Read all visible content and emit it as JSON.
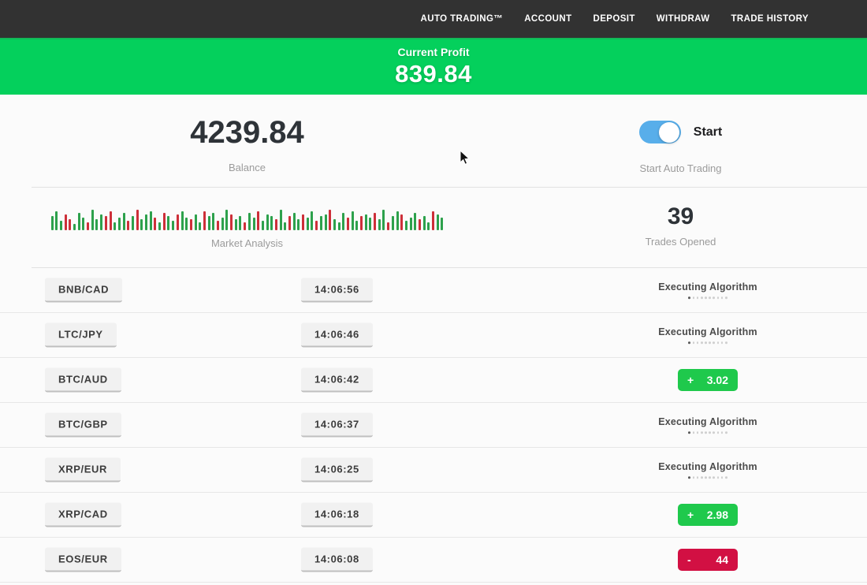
{
  "navbar": {
    "items": [
      {
        "label": "AUTO TRADING™"
      },
      {
        "label": "ACCOUNT"
      },
      {
        "label": "DEPOSIT"
      },
      {
        "label": "WITHDRAW"
      },
      {
        "label": "TRADE HISTORY"
      }
    ]
  },
  "banner": {
    "label": "Current Profit",
    "value": "839.84",
    "bg_color": "#04d05c"
  },
  "stats": {
    "balance": {
      "value": "4239.84",
      "label": "Balance"
    },
    "auto_trading": {
      "toggle_label": "Start",
      "label": "Start Auto Trading",
      "toggle_on": true,
      "toggle_color": "#58aeea"
    },
    "market_analysis": {
      "label": "Market Analysis",
      "bar_colors": {
        "g": "#2da14c",
        "r": "#cd2f39"
      },
      "bars": [
        [
          18,
          "g"
        ],
        [
          24,
          "g"
        ],
        [
          12,
          "g"
        ],
        [
          20,
          "r"
        ],
        [
          14,
          "r"
        ],
        [
          8,
          "g"
        ],
        [
          22,
          "g"
        ],
        [
          16,
          "g"
        ],
        [
          10,
          "r"
        ],
        [
          26,
          "g"
        ],
        [
          14,
          "g"
        ],
        [
          20,
          "g"
        ],
        [
          18,
          "r"
        ],
        [
          24,
          "r"
        ],
        [
          10,
          "g"
        ],
        [
          16,
          "g"
        ],
        [
          22,
          "g"
        ],
        [
          12,
          "r"
        ],
        [
          18,
          "g"
        ],
        [
          26,
          "r"
        ],
        [
          14,
          "g"
        ],
        [
          20,
          "g"
        ],
        [
          24,
          "g"
        ],
        [
          16,
          "r"
        ],
        [
          10,
          "g"
        ],
        [
          22,
          "r"
        ],
        [
          18,
          "g"
        ],
        [
          12,
          "g"
        ],
        [
          20,
          "r"
        ],
        [
          24,
          "g"
        ],
        [
          16,
          "g"
        ],
        [
          14,
          "r"
        ],
        [
          20,
          "g"
        ],
        [
          10,
          "g"
        ],
        [
          24,
          "r"
        ],
        [
          18,
          "g"
        ],
        [
          22,
          "g"
        ],
        [
          12,
          "r"
        ],
        [
          16,
          "g"
        ],
        [
          26,
          "g"
        ],
        [
          20,
          "r"
        ],
        [
          14,
          "g"
        ],
        [
          18,
          "g"
        ],
        [
          10,
          "r"
        ],
        [
          22,
          "g"
        ],
        [
          16,
          "g"
        ],
        [
          24,
          "r"
        ],
        [
          12,
          "g"
        ],
        [
          20,
          "g"
        ],
        [
          18,
          "g"
        ],
        [
          14,
          "r"
        ],
        [
          26,
          "g"
        ],
        [
          10,
          "g"
        ],
        [
          18,
          "r"
        ],
        [
          22,
          "g"
        ],
        [
          14,
          "g"
        ],
        [
          20,
          "r"
        ],
        [
          16,
          "g"
        ],
        [
          24,
          "g"
        ],
        [
          12,
          "r"
        ],
        [
          18,
          "g"
        ],
        [
          20,
          "g"
        ],
        [
          26,
          "r"
        ],
        [
          14,
          "g"
        ],
        [
          10,
          "g"
        ],
        [
          22,
          "g"
        ],
        [
          16,
          "r"
        ],
        [
          24,
          "g"
        ],
        [
          12,
          "g"
        ],
        [
          18,
          "r"
        ],
        [
          20,
          "g"
        ],
        [
          16,
          "g"
        ],
        [
          22,
          "r"
        ],
        [
          14,
          "g"
        ],
        [
          26,
          "g"
        ],
        [
          10,
          "r"
        ],
        [
          18,
          "g"
        ],
        [
          24,
          "g"
        ],
        [
          20,
          "r"
        ],
        [
          12,
          "g"
        ],
        [
          16,
          "g"
        ],
        [
          22,
          "g"
        ],
        [
          14,
          "r"
        ],
        [
          18,
          "g"
        ],
        [
          10,
          "g"
        ],
        [
          24,
          "r"
        ],
        [
          20,
          "g"
        ],
        [
          16,
          "g"
        ]
      ]
    },
    "trades_opened": {
      "value": "39",
      "label": "Trades Opened"
    }
  },
  "trades": {
    "progress_dots": {
      "total": 10,
      "active": 1
    },
    "status_colors": {
      "profit": "#1fc94c",
      "loss": "#d21043"
    },
    "rows": [
      {
        "pair": "BNB/CAD",
        "time": "14:06:56",
        "status": "executing",
        "status_label": "Executing Algorithm"
      },
      {
        "pair": "LTC/JPY",
        "time": "14:06:46",
        "status": "executing",
        "status_label": "Executing Algorithm"
      },
      {
        "pair": "BTC/AUD",
        "time": "14:06:42",
        "status": "profit",
        "result_sign": "+",
        "result_value": "3.02"
      },
      {
        "pair": "BTC/GBP",
        "time": "14:06:37",
        "status": "executing",
        "status_label": "Executing Algorithm"
      },
      {
        "pair": "XRP/EUR",
        "time": "14:06:25",
        "status": "executing",
        "status_label": "Executing Algorithm"
      },
      {
        "pair": "XRP/CAD",
        "time": "14:06:18",
        "status": "profit",
        "result_sign": "+",
        "result_value": "2.98"
      },
      {
        "pair": "EOS/EUR",
        "time": "14:06:08",
        "status": "loss",
        "result_sign": "-",
        "result_value": "44"
      }
    ]
  }
}
